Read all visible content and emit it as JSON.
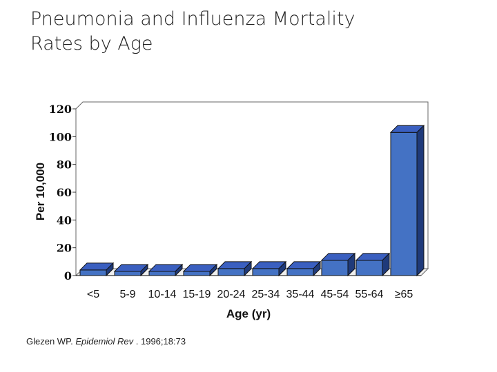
{
  "slide": {
    "title_line1": "Pneumonia and Influenza Mortality",
    "title_line2": "Rates by Age",
    "citation_author": "Glezen WP.",
    "citation_journal": "Epidemiol Rev",
    "citation_rest": ". 1996;18:73"
  },
  "chart_data": {
    "type": "bar",
    "title": "",
    "xlabel": "Age (yr)",
    "ylabel": "Per 10,000",
    "categories": [
      "<5",
      "5-9",
      "10-14",
      "15-19",
      "20-24",
      "25-34",
      "35-44",
      "45-54",
      "55-64",
      "≥65"
    ],
    "values": [
      4,
      3,
      3,
      3,
      5,
      5,
      5,
      11,
      11,
      103
    ],
    "ylim": [
      0,
      120
    ],
    "yticks": [
      0,
      20,
      40,
      60,
      80,
      100,
      120
    ],
    "grid": false,
    "bar_color": "#4472c4",
    "bar_top_color": "#3a5fc0",
    "bar_side_color": "#1f3a7a"
  }
}
